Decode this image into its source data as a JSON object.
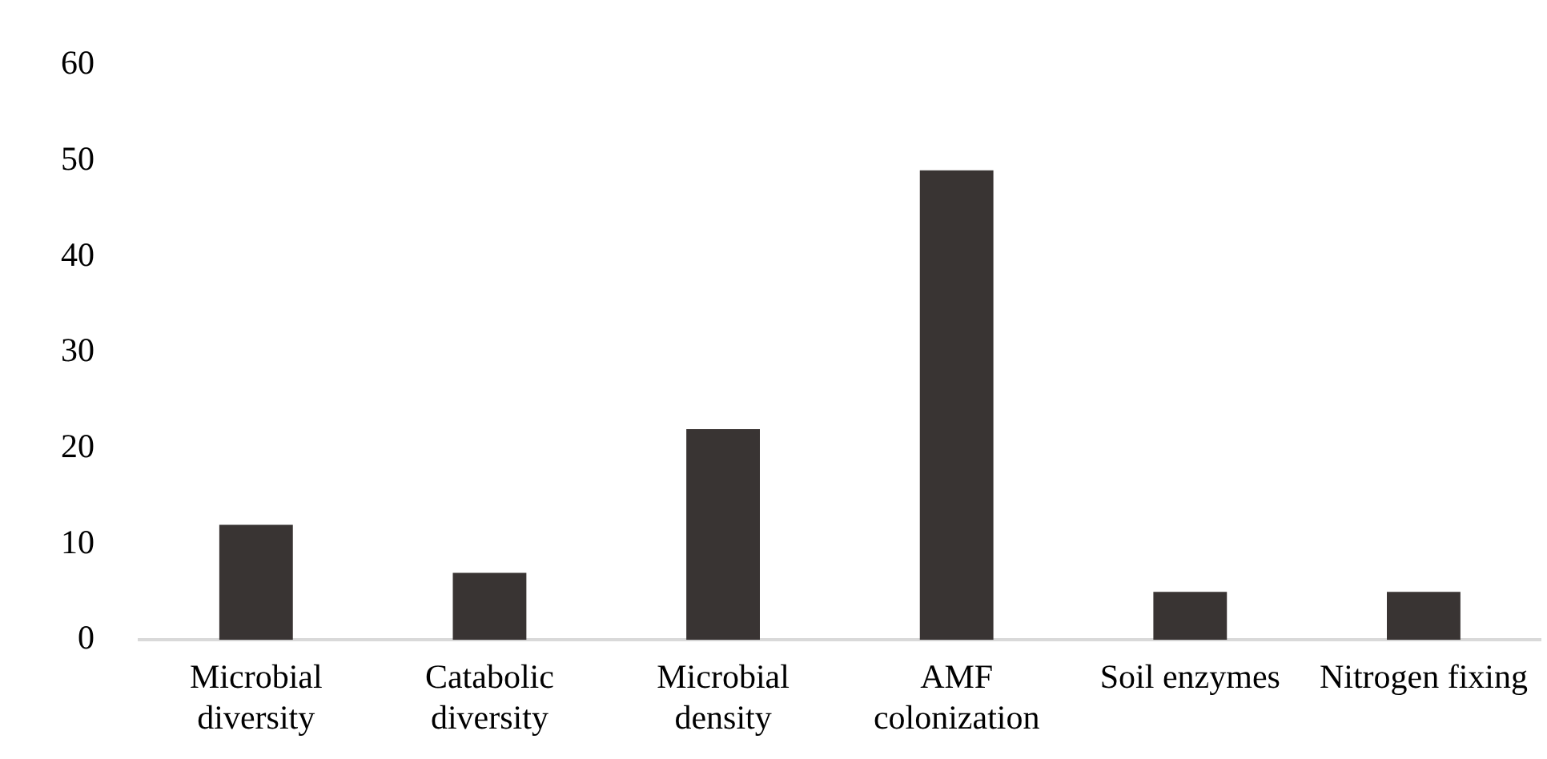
{
  "chart_data": {
    "type": "bar",
    "categories": [
      "Microbial diversity",
      "Catabolic diversity",
      "Microbial density",
      "AMF colonization",
      "Soil enzymes",
      "Nitrogen fixing"
    ],
    "values": [
      12,
      7,
      22,
      49,
      5,
      5
    ],
    "color": "#393433",
    "ylim": [
      0,
      60
    ],
    "yticks": [
      0,
      10,
      20,
      30,
      40,
      50,
      60
    ],
    "grid": false,
    "legend": false
  }
}
